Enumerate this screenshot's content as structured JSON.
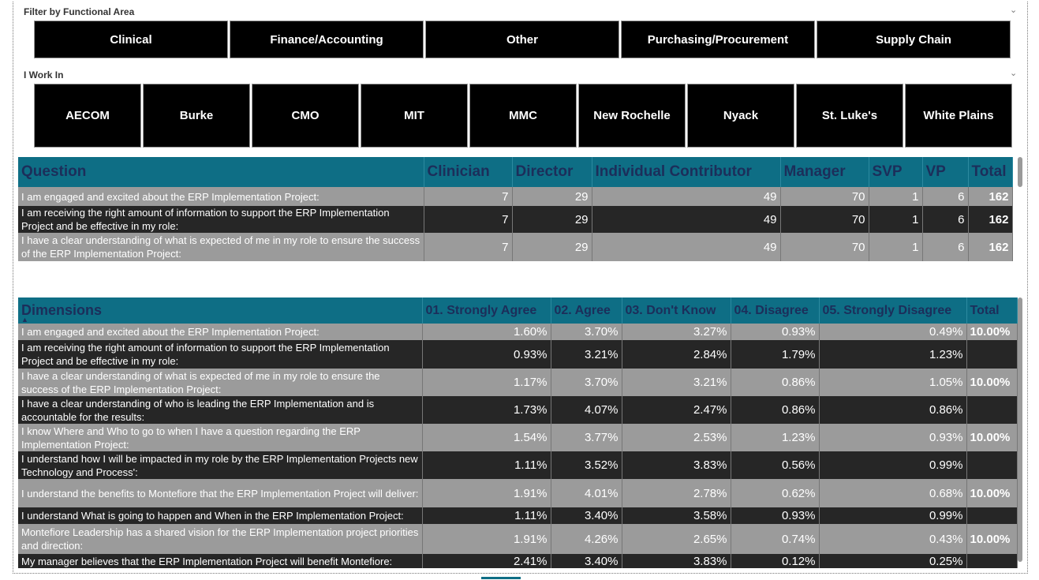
{
  "filter_functional": {
    "label": "Filter by Functional Area",
    "items": [
      "Clinical",
      "Finance/Accounting",
      "Other",
      "Purchasing/Procurement",
      "Supply Chain"
    ]
  },
  "filter_work": {
    "label": "I Work In",
    "items": [
      "AECOM",
      "Burke",
      "CMO",
      "MIT",
      "MMC",
      "New Rochelle",
      "Nyack",
      "St. Luke's",
      "White Plains"
    ]
  },
  "table1": {
    "headers": [
      "Question",
      "Clinician",
      "Director",
      "Individual Contributor",
      "Manager",
      "SVP",
      "VP",
      "Total"
    ],
    "rows": [
      {
        "q": "I am engaged and excited about the ERP Implementation Project:",
        "v": [
          "7",
          "29",
          "49",
          "70",
          "1",
          "6",
          "162"
        ]
      },
      {
        "q": "I am receiving the right amount of information to support the ERP Implementation Project and be effective in my role:",
        "v": [
          "7",
          "29",
          "49",
          "70",
          "1",
          "6",
          "162"
        ]
      },
      {
        "q": "I have a clear understanding of what is expected of me in my role to ensure the success of the ERP Implementation Project:",
        "v": [
          "7",
          "29",
          "49",
          "70",
          "1",
          "6",
          "162"
        ]
      }
    ]
  },
  "table2": {
    "headers": [
      "Dimensions",
      "01. Strongly Agree",
      "02. Agree",
      "03. Don't Know",
      "04. Disagree",
      "05. Strongly Disagree",
      "Total"
    ],
    "rows": [
      {
        "q": "I am engaged and excited about the ERP Implementation Project:",
        "v": [
          "1.60%",
          "3.70%",
          "3.27%",
          "0.93%",
          "0.49%",
          "10.00%"
        ]
      },
      {
        "q": "I am receiving the right amount of information to support the ERP Implementation Project and be effective in my role:",
        "v": [
          "0.93%",
          "3.21%",
          "2.84%",
          "1.79%",
          "1.23%",
          ""
        ]
      },
      {
        "q": "I have a clear understanding of what is expected of me in my role to ensure the success of the ERP Implementation Project:",
        "v": [
          "1.17%",
          "3.70%",
          "3.21%",
          "0.86%",
          "1.05%",
          "10.00%"
        ]
      },
      {
        "q": "I have a clear understanding of who is leading the ERP Implementation and is accountable for the results:",
        "v": [
          "1.73%",
          "4.07%",
          "2.47%",
          "0.86%",
          "0.86%",
          ""
        ]
      },
      {
        "q": "I know Where and Who to go to when I have a question regarding the ERP Implementation Project:",
        "v": [
          "1.54%",
          "3.77%",
          "2.53%",
          "1.23%",
          "0.93%",
          "10.00%"
        ]
      },
      {
        "q": "I understand how I will be impacted in my role by the ERP Implementation Projects new Technology and Process':",
        "v": [
          "1.11%",
          "3.52%",
          "3.83%",
          "0.56%",
          "0.99%",
          ""
        ]
      },
      {
        "q": "I understand the benefits to Montefiore that the ERP Implementation Project will deliver:",
        "v": [
          "1.91%",
          "4.01%",
          "2.78%",
          "0.62%",
          "0.68%",
          "10.00%"
        ]
      },
      {
        "q": "I understand What is going to happen and When in the ERP Implementation Project:",
        "v": [
          "1.11%",
          "3.40%",
          "3.58%",
          "0.93%",
          "0.99%",
          ""
        ]
      },
      {
        "q": "Montefiore Leadership has a shared vision for the ERP Implementation project priorities and direction:",
        "v": [
          "1.91%",
          "4.26%",
          "2.65%",
          "0.74%",
          "0.43%",
          "10.00%"
        ]
      },
      {
        "q": "My manager believes that the ERP Implementation Project will benefit Montefiore:",
        "v": [
          "2.41%",
          "3.40%",
          "3.83%",
          "0.12%",
          "0.25%",
          ""
        ]
      }
    ]
  },
  "colors": {
    "header_teal": "#0e6e85",
    "header_text": "#1c2e5a",
    "row_light": "#9b9b9b",
    "row_dark": "#262626",
    "slicer_bg": "#000000"
  },
  "icons": {
    "chevron": "chevron-down-icon",
    "sort": "sort-ascending-icon"
  }
}
